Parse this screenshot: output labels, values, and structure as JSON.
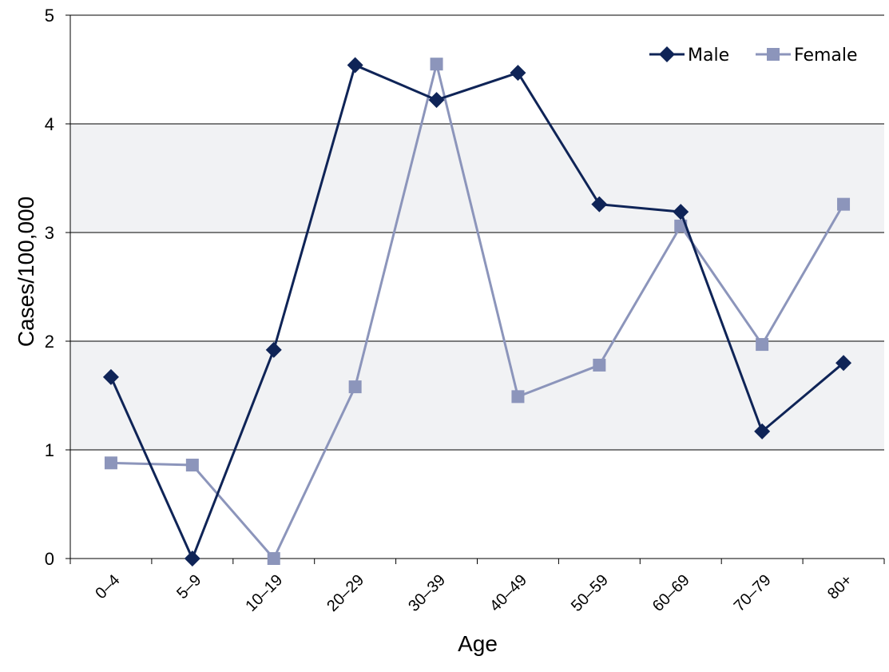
{
  "chart_data": {
    "type": "line",
    "title": "",
    "xlabel": "Age",
    "ylabel": "Cases/100,000",
    "categories": [
      "0–4",
      "5–9",
      "10–19",
      "20–29",
      "30–39",
      "40–49",
      "50–59",
      "60–69",
      "70–79",
      "80+"
    ],
    "ylim": [
      0,
      5
    ],
    "yticks": [
      "0",
      "1",
      "2",
      "3",
      "4",
      "5"
    ],
    "grid": true,
    "legend_position": "top-right",
    "series": [
      {
        "name": "Male",
        "marker": "diamond",
        "color": "#0f2457",
        "values": [
          1.67,
          0.0,
          1.92,
          4.54,
          4.22,
          4.47,
          3.26,
          3.19,
          1.17,
          1.8
        ]
      },
      {
        "name": "Female",
        "marker": "square",
        "color": "#8c95bb",
        "values": [
          0.88,
          0.86,
          0.0,
          1.58,
          4.55,
          1.49,
          1.78,
          3.06,
          1.97,
          3.26
        ]
      }
    ],
    "colors": {
      "band": "#f1f2f4",
      "gridline": "#000000",
      "axis": "#000000"
    }
  }
}
